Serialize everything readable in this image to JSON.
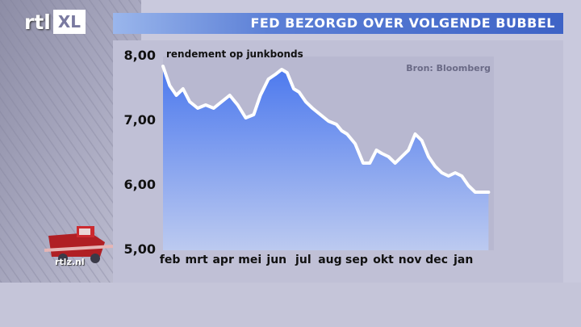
{
  "header": {
    "logo_main": "rtl",
    "logo_badge": "XL",
    "title": "FED BEZORGD OVER VOLGENDE BUBBEL"
  },
  "site_label": "rtlz.nl",
  "chart_data": {
    "type": "area",
    "title": "FED BEZORGD OVER VOLGENDE BUBBEL",
    "series_label": "rendement op junkbonds",
    "source": "Bron: Bloomberg",
    "ylim": [
      5.0,
      8.0
    ],
    "yticks": [
      5.0,
      6.0,
      7.0,
      8.0
    ],
    "ytick_labels": [
      "5,00",
      "6,00",
      "7,00",
      "8,00"
    ],
    "x_labels": [
      "feb",
      "mrt",
      "apr",
      "mei",
      "jun",
      "jul",
      "aug",
      "sep",
      "okt",
      "nov",
      "dec",
      "jan"
    ],
    "xlim": [
      0,
      12.4
    ],
    "grid": false,
    "series": [
      {
        "x": [
          0,
          0.25,
          0.5,
          0.75,
          1.0,
          1.3,
          1.6,
          1.9,
          2.2,
          2.5,
          2.8,
          3.1,
          3.4,
          3.65,
          3.95,
          4.2,
          4.45,
          4.65,
          4.9,
          5.1,
          5.35,
          5.6,
          5.9,
          6.2,
          6.5,
          6.7,
          6.9,
          7.2,
          7.5,
          7.75,
          8.0,
          8.2,
          8.45,
          8.7,
          8.95,
          9.2,
          9.45,
          9.7,
          9.95,
          10.2,
          10.45,
          10.7,
          10.95,
          11.2,
          11.45,
          11.7,
          11.9,
          12.2
        ],
        "y": [
          7.85,
          7.55,
          7.4,
          7.5,
          7.3,
          7.2,
          7.25,
          7.2,
          7.3,
          7.4,
          7.25,
          7.05,
          7.1,
          7.4,
          7.65,
          7.72,
          7.8,
          7.75,
          7.5,
          7.45,
          7.3,
          7.2,
          7.1,
          7.0,
          6.95,
          6.85,
          6.8,
          6.65,
          6.35,
          6.35,
          6.55,
          6.5,
          6.45,
          6.35,
          6.45,
          6.55,
          6.8,
          6.7,
          6.45,
          6.3,
          6.2,
          6.15,
          6.2,
          6.15,
          6.0,
          5.9,
          5.9,
          5.9
        ],
        "line_color": "#ffffff",
        "fill_top_color": "#4b78ee",
        "fill_bottom_color": "#bccaf0"
      }
    ]
  },
  "colors": {
    "page_background": "#c9c9dd",
    "plot_background": "#b9b9d2",
    "banner_blue": "#3e63c6"
  }
}
